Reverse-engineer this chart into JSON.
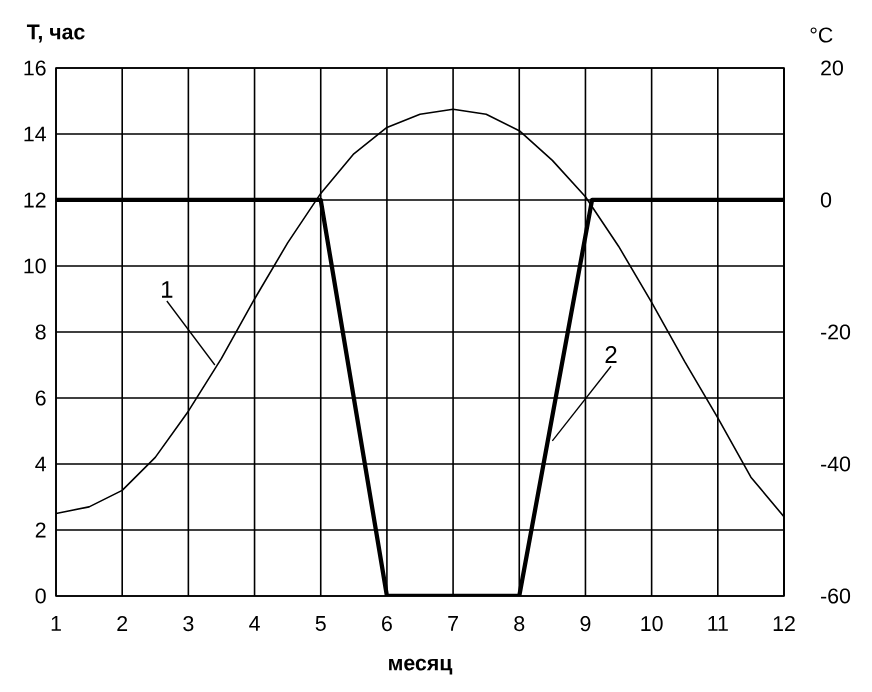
{
  "chart_data": {
    "type": "line",
    "xlabel": "месяц",
    "ylabel": "T, час",
    "y2label": "°C",
    "xlim": [
      1,
      12
    ],
    "xticks": [
      1,
      2,
      3,
      4,
      5,
      6,
      7,
      8,
      9,
      10,
      11,
      12
    ],
    "ylim": [
      0,
      16
    ],
    "yticks": [
      0,
      2,
      4,
      6,
      8,
      10,
      12,
      14,
      16
    ],
    "y2lim": [
      -60,
      20
    ],
    "y2ticks": [
      -60,
      -40,
      -20,
      0,
      20
    ],
    "grid": true,
    "series": [
      {
        "color": "#000000",
        "x": [
          1,
          1.5,
          2,
          2.5,
          3,
          3.5,
          4,
          4.5,
          5,
          5.5,
          6,
          6.5,
          7,
          7.5,
          8,
          8.5,
          9,
          9.5,
          10,
          10.5,
          11,
          11.5,
          12
        ],
        "values": [
          2.5,
          2.7,
          3.2,
          4.2,
          5.6,
          7.2,
          9.0,
          10.7,
          12.2,
          13.4,
          14.2,
          14.6,
          14.75,
          14.6,
          14.1,
          13.2,
          12.1,
          10.6,
          8.9,
          7.1,
          5.4,
          3.6,
          2.4
        ]
      },
      {
        "color": "#000000",
        "axis": "y2",
        "x": [
          1,
          5,
          6,
          8,
          9.1,
          12
        ],
        "values": [
          0,
          0,
          -60,
          -60,
          0,
          0
        ]
      }
    ],
    "annotations": [
      {
        "text": "1",
        "x": 3.4,
        "y": 7.0
      },
      {
        "text": "2",
        "x": 8.5,
        "y": 4.7
      }
    ]
  }
}
